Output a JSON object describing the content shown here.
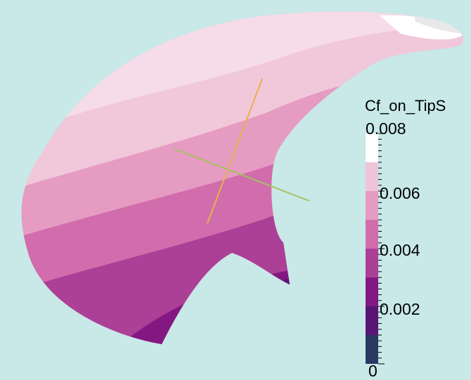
{
  "colorbar": {
    "title": "Cf_on_TipS",
    "tick_labels": [
      "0.008",
      "0.006",
      "0.004",
      "0.002",
      "0"
    ],
    "range": [
      0,
      0.008
    ],
    "bands": [
      {
        "from": 0.007,
        "to": 0.008,
        "color": "#ffffff"
      },
      {
        "from": 0.006,
        "to": 0.007,
        "color": "#f0c4d8"
      },
      {
        "from": 0.005,
        "to": 0.006,
        "color": "#e59bc2"
      },
      {
        "from": 0.004,
        "to": 0.005,
        "color": "#d16dac"
      },
      {
        "from": 0.003,
        "to": 0.004,
        "color": "#ac3f96"
      },
      {
        "from": 0.002,
        "to": 0.003,
        "color": "#841883"
      },
      {
        "from": 0.001,
        "to": 0.002,
        "color": "#581575"
      },
      {
        "from": 0.0,
        "to": 0.001,
        "color": "#283a62"
      }
    ]
  },
  "colors": {
    "background": "#c9e8e8",
    "axis_primary": "#e6b24a",
    "axis_secondary": "#a8c060"
  }
}
